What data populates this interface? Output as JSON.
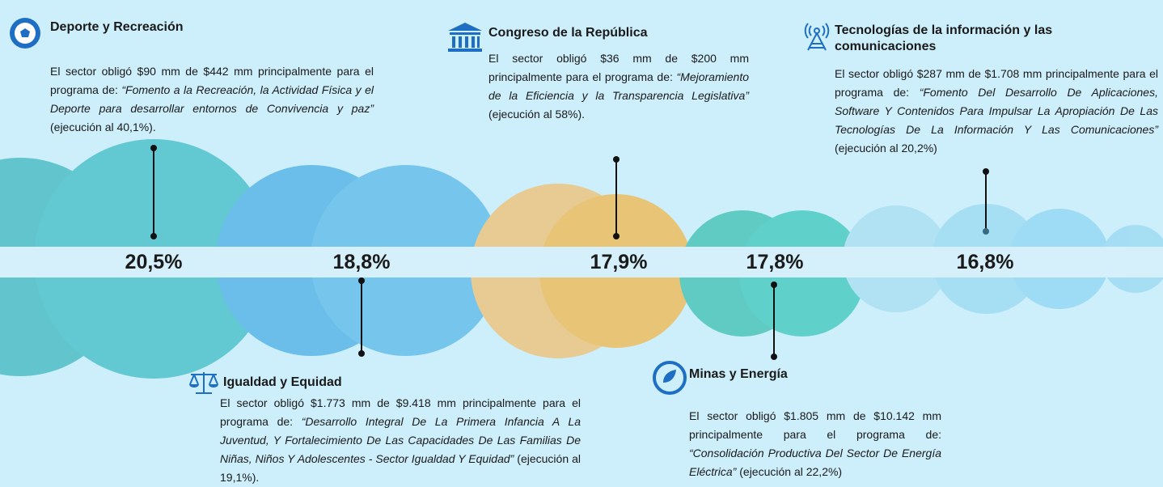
{
  "sectors": [
    {
      "title": "Deporte y Recreación",
      "text": "El sector obligó $90 mm de $442 mm principalmente para el programa de: ",
      "program": "“Fomento a la Recreación, la Actividad Física y el Deporte para desarrollar entornos de Convivencia y paz”",
      "tail": " (ejecución al 40,1%).",
      "percent": "20,5%"
    },
    {
      "title": "Igualdad y Equidad",
      "text": "El sector obligó $1.773 mm de $9.418 mm principalmente para el programa de: ",
      "program": "“Desarrollo Integral De La Primera Infancia A La Juventud, Y Fortalecimiento De Las Capacidades De Las Familias De Niñas, Niños Y Adolescentes - Sector Igualdad Y Equidad”",
      "tail": " (ejecución al 19,1%).",
      "percent": "18,8%"
    },
    {
      "title": "Congreso de la República",
      "text": "El sector obligó $36 mm de $200 mm principalmente para el programa de: ",
      "program": "“Mejoramiento de la Eficiencia y la Transparencia Legislativa”",
      "tail": " (ejecución al 58%).",
      "percent": "17,9%"
    },
    {
      "title": "Minas y Energía",
      "text": "El sector obligó $1.805 mm de $10.142 mm principalmente para el programa de: ",
      "program": "“Consolidación Productiva Del Sector De Energía Eléctrica”",
      "tail": " (ejecución al 22,2%)",
      "percent": "17,8%"
    },
    {
      "title": "Tecnologías de la información y las comunicaciones",
      "text": "El sector obligó $287 mm de $1.708 mm principalmente para el programa de: ",
      "program": "“Fomento Del Desarrollo De Aplicaciones, Software Y Contenidos Para Impulsar La Apropiación De Las Tecnologías De La Información Y Las Comunicaciones”",
      "tail": " (ejecución al 20,2%)",
      "percent": "16,8%"
    }
  ]
}
